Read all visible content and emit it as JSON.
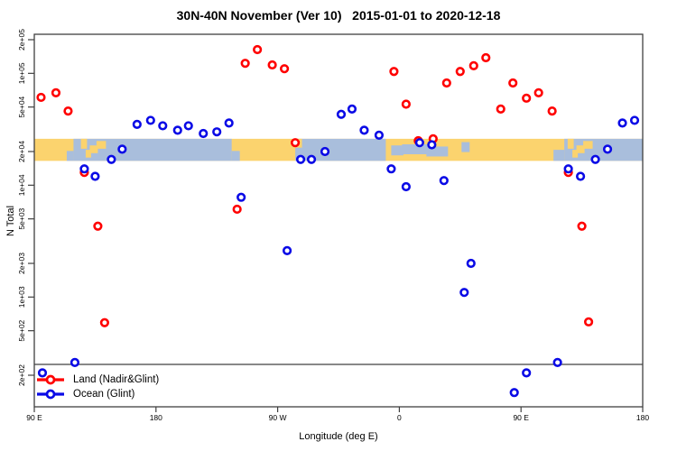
{
  "title": "30N-40N November (Ver 10)   2015-01-01 to 2020-12-18",
  "axes": {
    "x": {
      "label": "Longitude (deg E)",
      "ticks": [
        {
          "lon": 90,
          "label": "90 E"
        },
        {
          "lon": 180,
          "label": "180"
        },
        {
          "lon": 270,
          "label": "90 W"
        },
        {
          "lon": 360,
          "label": "0"
        },
        {
          "lon": 450,
          "label": "90 E"
        },
        {
          "lon": 540,
          "label": "180"
        }
      ]
    },
    "y": {
      "label": "N Total",
      "scale": "log",
      "ticks": [
        {
          "value": 200000,
          "label": "2e+05"
        },
        {
          "value": 100000,
          "label": "1e+05"
        },
        {
          "value": 50000,
          "label": "5e+04"
        },
        {
          "value": 20000,
          "label": "2e+04"
        },
        {
          "value": 10000,
          "label": "1e+04"
        },
        {
          "value": 5000,
          "label": "5e+03"
        },
        {
          "value": 2000,
          "label": "2e+03"
        },
        {
          "value": 1000,
          "label": "1e+03"
        },
        {
          "value": 500,
          "label": "5e+02"
        },
        {
          "value": 200,
          "label": "2e+02"
        }
      ]
    }
  },
  "legend": {
    "items": [
      {
        "label": "Land (Nadir&Glint)",
        "color": "#ff0000"
      },
      {
        "label": "Ocean (Glint)",
        "color": "#0a0ae6"
      }
    ]
  },
  "colors": {
    "land_marker": "#ff0000",
    "ocean_marker": "#0a0ae6",
    "band_land": "#fbd36e",
    "band_ocean": "#a9bedc",
    "frame": "#404040"
  },
  "chart_data": {
    "type": "scatter",
    "title": "30N-40N November (Ver 10)   2015-01-01 to 2020-12-18",
    "xlabel": "Longitude (deg E)",
    "ylabel": "N Total",
    "x_range_deg": [
      90,
      540
    ],
    "y_range": [
      100,
      224000
    ],
    "y_scale": "log",
    "reference_line": {
      "value": 250
    },
    "map_band": {
      "value_top": 26000,
      "value_bottom": 16500,
      "ocean_segments": [
        [
          119,
          236
        ],
        [
          283,
          350
        ],
        [
          482,
          540
        ]
      ],
      "islands": [
        [
          124.5,
          129,
          0.0,
          0.45
        ],
        [
          128,
          132,
          0.5,
          0.85
        ],
        [
          131,
          137,
          0.3,
          0.65
        ],
        [
          136,
          143,
          0.1,
          0.45
        ],
        [
          283,
          288,
          0.0,
          0.4
        ],
        [
          484.5,
          489,
          0.0,
          0.45
        ],
        [
          488,
          492,
          0.5,
          0.85
        ],
        [
          491,
          497,
          0.3,
          0.65
        ],
        [
          496,
          503,
          0.1,
          0.45
        ]
      ],
      "seas": [
        [
          114,
          119,
          0.55,
          1.0
        ],
        [
          236,
          242,
          0.55,
          1.0
        ],
        [
          354,
          363,
          0.3,
          0.75
        ],
        [
          362,
          381,
          0.25,
          0.7
        ],
        [
          380,
          396,
          0.35,
          0.8
        ],
        [
          406,
          412,
          0.15,
          0.6
        ],
        [
          474,
          482,
          0.5,
          1.0
        ]
      ]
    },
    "series": [
      {
        "name": "Land (Nadir&Glint)",
        "color": "#ff0000",
        "points": [
          [
            95,
            61000
          ],
          [
            106,
            67000
          ],
          [
            115,
            46000
          ],
          [
            127,
            13000
          ],
          [
            137,
            4300
          ],
          [
            142,
            590
          ],
          [
            240,
            6100
          ],
          [
            246,
            123000
          ],
          [
            255,
            163000
          ],
          [
            266,
            119000
          ],
          [
            275,
            110000
          ],
          [
            283,
            24000
          ],
          [
            356,
            104000
          ],
          [
            365,
            53000
          ],
          [
            374,
            25000
          ],
          [
            385,
            26000
          ],
          [
            395,
            82000
          ],
          [
            405,
            104000
          ],
          [
            415,
            117000
          ],
          [
            424,
            138000
          ],
          [
            435,
            48000
          ],
          [
            444,
            82000
          ],
          [
            454,
            60000
          ],
          [
            463,
            67000
          ],
          [
            473,
            46000
          ],
          [
            485,
            13000
          ],
          [
            495,
            4300
          ],
          [
            500,
            600
          ]
        ]
      },
      {
        "name": "Ocean (Glint)",
        "color": "#0a0ae6",
        "points": [
          [
            96,
            210
          ],
          [
            120,
            260
          ],
          [
            127,
            14000
          ],
          [
            135,
            12000
          ],
          [
            147,
            17000
          ],
          [
            155,
            21000
          ],
          [
            166,
            35000
          ],
          [
            176,
            38000
          ],
          [
            185,
            34000
          ],
          [
            196,
            31000
          ],
          [
            204,
            34000
          ],
          [
            215,
            29000
          ],
          [
            225,
            30000
          ],
          [
            234,
            36000
          ],
          [
            243,
            7800
          ],
          [
            277,
            2600
          ],
          [
            287,
            17000
          ],
          [
            295,
            17000
          ],
          [
            305,
            20000
          ],
          [
            317,
            43000
          ],
          [
            325,
            48000
          ],
          [
            334,
            31000
          ],
          [
            345,
            28000
          ],
          [
            354,
            14000
          ],
          [
            365,
            9700
          ],
          [
            375,
            24000
          ],
          [
            384,
            23000
          ],
          [
            393,
            11000
          ],
          [
            408,
            1100
          ],
          [
            413,
            2000
          ],
          [
            445,
            140
          ],
          [
            454,
            210
          ],
          [
            477,
            260
          ],
          [
            485,
            14000
          ],
          [
            494,
            12000
          ],
          [
            505,
            17000
          ],
          [
            514,
            21000
          ],
          [
            525,
            36000
          ],
          [
            534,
            38000
          ]
        ]
      }
    ]
  }
}
